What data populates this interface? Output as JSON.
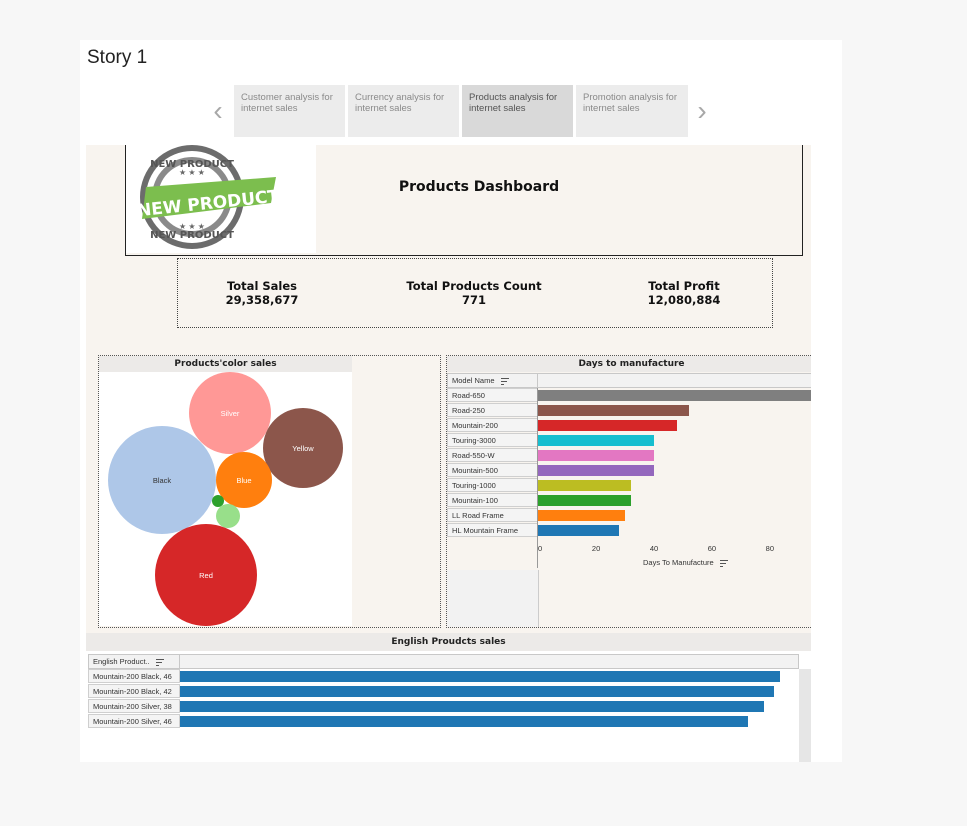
{
  "story": {
    "title": "Story 1",
    "tabs": [
      {
        "label": "Customer analysis for internet sales",
        "active": false
      },
      {
        "label": "Currency analysis for internet sales",
        "active": false
      },
      {
        "label": "Products analysis for internet sales",
        "active": true
      },
      {
        "label": "Promotion analysis for internet sales",
        "active": false
      }
    ],
    "prev_icon": "chevron-left-icon",
    "next_icon": "chevron-right-icon"
  },
  "dashboard": {
    "title": "Products Dashboard",
    "logo": {
      "text_top": "NEW PRODUCT",
      "text_main": "NEW PRODUCT",
      "text_bottom": "NEW PRODUCT"
    },
    "kpis": [
      {
        "label": "Total Sales",
        "value": "29,358,677"
      },
      {
        "label": "Total Products Count",
        "value": "771"
      },
      {
        "label": "Total Profit",
        "value": "12,080,884"
      }
    ]
  },
  "color_sales": {
    "title": "Products'color sales",
    "bubbles": [
      {
        "label": "Silver",
        "color": "#ff9896",
        "text_color": "#ffffff"
      },
      {
        "label": "Yellow",
        "color": "#8c564b",
        "text_color": "#ffffff"
      },
      {
        "label": "Black",
        "color": "#aec7e8",
        "text_color": "#333333"
      },
      {
        "label": "Blue",
        "color": "#ff7f0e",
        "text_color": "#ffffff"
      },
      {
        "label": "",
        "color": "#2ca02c",
        "text_color": "#ffffff"
      },
      {
        "label": "",
        "color": "#98df8a",
        "text_color": "#ffffff"
      },
      {
        "label": "Red",
        "color": "#d62728",
        "text_color": "#ffffff"
      }
    ]
  },
  "manufacture": {
    "title": "Days to manufacture",
    "column_header": "Model Name",
    "x_label": "Days To Manufacture",
    "x_ticks": [
      "0",
      "20",
      "40",
      "60",
      "80"
    ]
  },
  "english_sales": {
    "title": "English Proudcts sales",
    "column_header": "English Product..",
    "chart_data": {
      "type": "bar",
      "categories": [
        "Mountain-200 Black, 46",
        "Mountain-200 Black, 42",
        "Mountain-200 Silver, 38",
        "Mountain-200 Silver, 46"
      ],
      "values": [
        1.0,
        0.99,
        0.974,
        0.946
      ],
      "color": "#1f77b4"
    }
  },
  "chart_data": {
    "type": "bar",
    "orientation": "horizontal",
    "categories": [
      "Road-650",
      "Road-250",
      "Mountain-200",
      "Touring-3000",
      "Road-550-W",
      "Mountain-500",
      "Touring-1000",
      "Mountain-100",
      "LL Road Frame",
      "HL Mountain Frame"
    ],
    "values": [
      96,
      52,
      48,
      40,
      40,
      40,
      32,
      32,
      30,
      28
    ],
    "colors": [
      "#7f7f7f",
      "#8c564b",
      "#d62728",
      "#17becf",
      "#e377c2",
      "#9467bd",
      "#bcbd22",
      "#2ca02c",
      "#ff7f0e",
      "#1f77b4"
    ],
    "xlabel": "Days To Manufacture",
    "ylabel": "Model Name",
    "xlim": [
      0,
      96
    ],
    "x_ticks": [
      0,
      20,
      40,
      60,
      80
    ]
  }
}
